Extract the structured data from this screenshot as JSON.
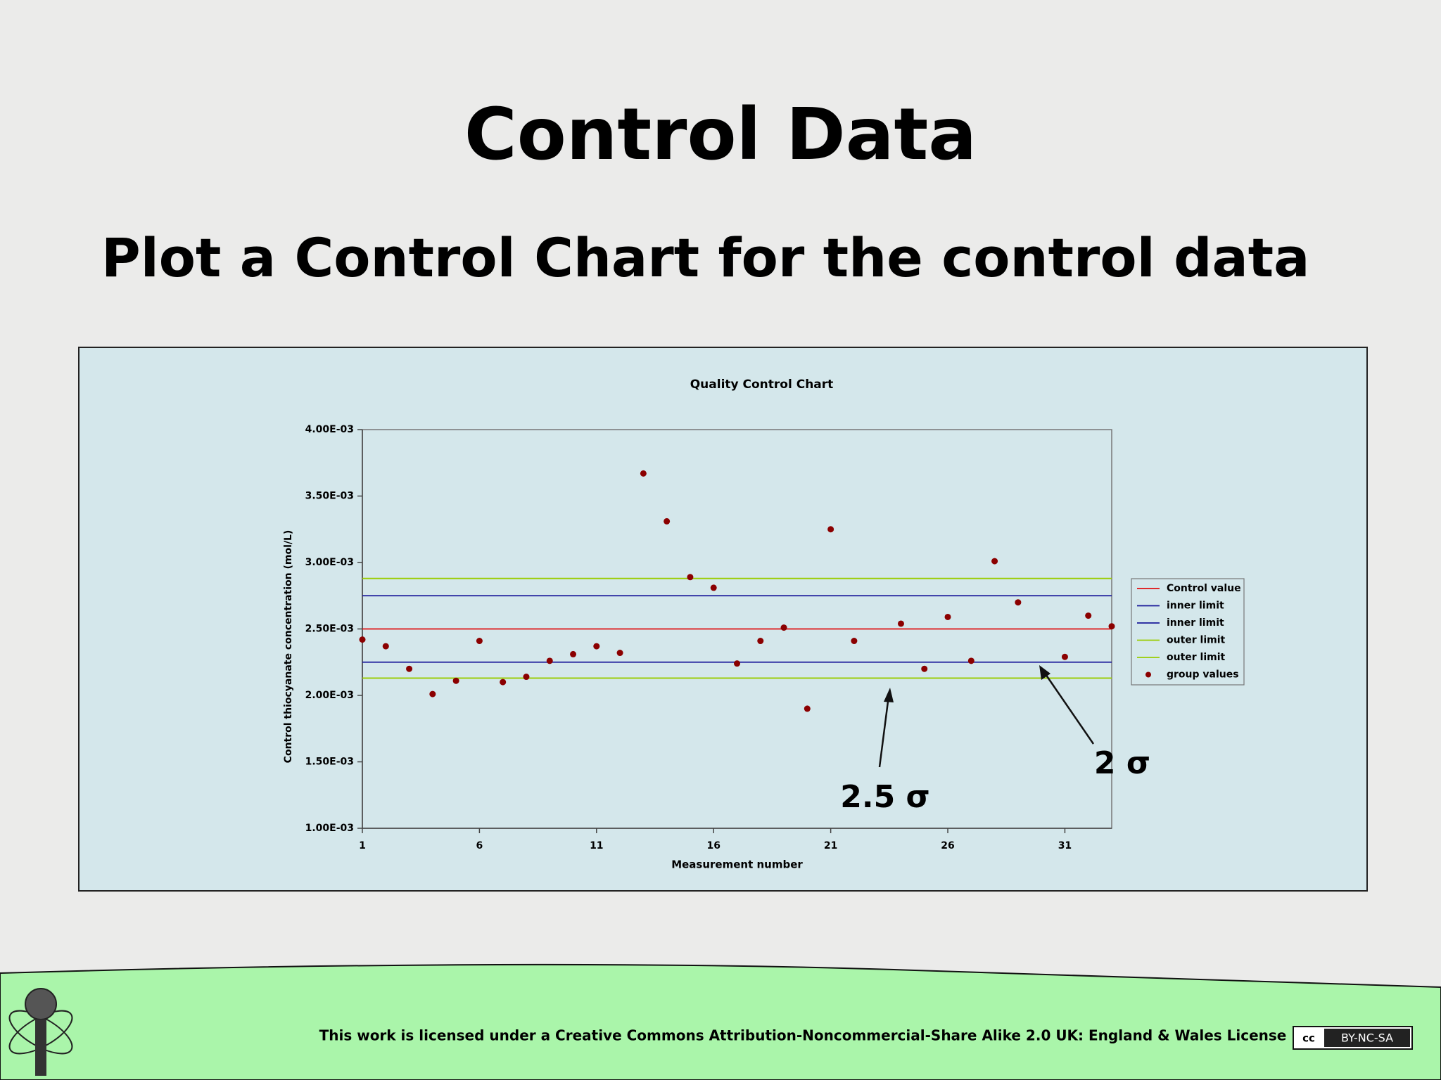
{
  "slide": {
    "title": "Control Data",
    "subtitle": "Plot a Control Chart for the control data",
    "footer": "This work is licensed under a Creative Commons Attribution-Noncommercial-Share Alike 2.0 UK: England & Wales License",
    "badge_cc": "cc",
    "badge_text": "BY-NC-SA"
  },
  "chart_data": {
    "type": "scatter",
    "title": "Quality Control Chart",
    "x_label": "Measurement number",
    "y_label": "Control thiocyanate concentration (mol/L)",
    "x": [
      1,
      2,
      3,
      4,
      5,
      6,
      7,
      8,
      9,
      10,
      11,
      12,
      13,
      14,
      15,
      16,
      17,
      18,
      19,
      20,
      21,
      22,
      23,
      24,
      25,
      26,
      27,
      28,
      29,
      30,
      31,
      32,
      33
    ],
    "xlim": [
      1,
      33
    ],
    "xticks": [
      1,
      6,
      11,
      16,
      21,
      26,
      31
    ],
    "ylim": [
      0.001,
      0.004
    ],
    "yticks": [
      {
        "value": 0.001,
        "label": "1.00E-03"
      },
      {
        "value": 0.0015,
        "label": "1.50E-03"
      },
      {
        "value": 0.002,
        "label": "2.00E-03"
      },
      {
        "value": 0.0025,
        "label": "2.50E-03"
      },
      {
        "value": 0.003,
        "label": "3.00E-03"
      },
      {
        "value": 0.0035,
        "label": "3.50E-03"
      },
      {
        "value": 0.004,
        "label": "4.00E-03"
      }
    ],
    "series": [
      {
        "name": "Control value",
        "color": "#e01010",
        "kind": "hline",
        "value": 0.0025
      },
      {
        "name": "inner limit",
        "color": "#1a1a9a",
        "kind": "hline",
        "value": 0.00275
      },
      {
        "name": "inner limit",
        "color": "#1a1a9a",
        "kind": "hline",
        "value": 0.00225
      },
      {
        "name": "outer limit",
        "color": "#99cc00",
        "kind": "hline",
        "value": 0.00288
      },
      {
        "name": "outer limit",
        "color": "#99cc00",
        "kind": "hline",
        "value": 0.00213
      },
      {
        "name": "group values",
        "color": "#8b0000",
        "kind": "points",
        "values": [
          0.00242,
          0.00237,
          0.0022,
          0.00201,
          0.00211,
          0.00241,
          0.0021,
          0.00214,
          0.00226,
          0.00231,
          0.00237,
          0.00232,
          0.00367,
          0.00331,
          0.00289,
          0.00281,
          0.00224,
          0.00241,
          0.00251,
          0.0019,
          0.00325,
          0.00241,
          null,
          0.00254,
          0.0022,
          0.00259,
          0.00226,
          0.00301,
          0.0027,
          null,
          0.00229,
          0.0026,
          0.00252
        ]
      }
    ],
    "annotations": [
      "2.5 σ",
      "2 σ"
    ],
    "legend": "right"
  }
}
